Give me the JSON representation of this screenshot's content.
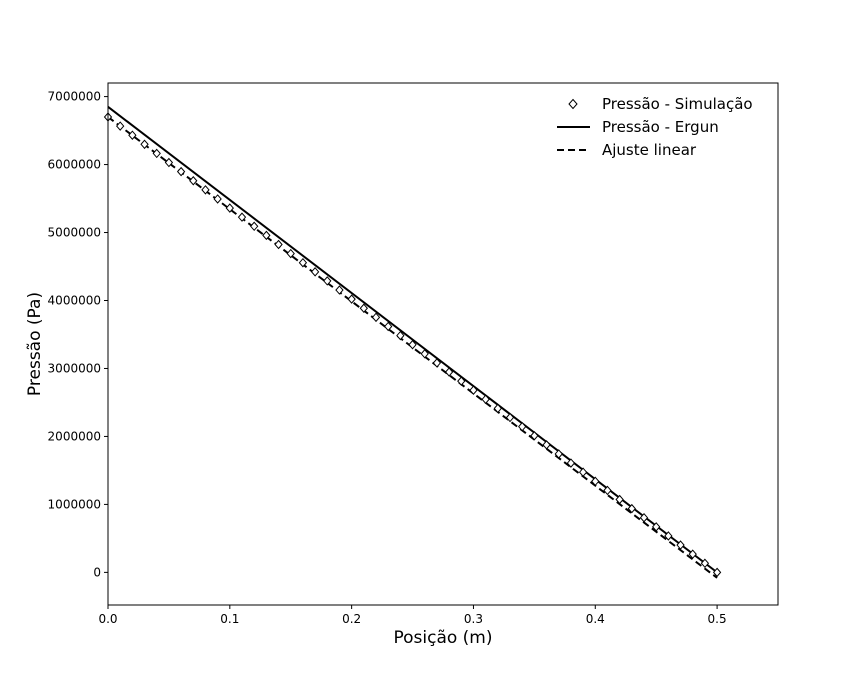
{
  "chart_data": {
    "type": "line",
    "title": "",
    "xlabel": "Posição (m)",
    "ylabel": "Pressão (Pa)",
    "xlim": [
      0.0,
      0.55
    ],
    "ylim": [
      -480000,
      7200000
    ],
    "xticks": [
      0.0,
      0.1,
      0.2,
      0.3,
      0.4,
      0.5
    ],
    "xtick_labels": [
      "0.0",
      "0.1",
      "0.2",
      "0.3",
      "0.4",
      "0.5"
    ],
    "yticks": [
      0,
      1000000,
      2000000,
      3000000,
      4000000,
      5000000,
      6000000,
      7000000
    ],
    "ytick_labels": [
      "0",
      "1000000",
      "2000000",
      "3000000",
      "4000000",
      "5000000",
      "6000000",
      "7000000"
    ],
    "grid": false,
    "legend_position": "top-right",
    "series": [
      {
        "name": "Pressão - Simulação",
        "style": "markers",
        "marker": "diamond",
        "color": "#000000",
        "x_start": 0.0,
        "x_end": 0.5,
        "x_step": 0.01,
        "y_start": 6700000,
        "y_end": 0
      },
      {
        "name": "Pressão - Ergun",
        "style": "solid",
        "color": "#000000",
        "x": [
          0.0,
          0.5
        ],
        "y": [
          6850000,
          0
        ]
      },
      {
        "name": "Ajuste linear",
        "style": "dashed",
        "color": "#000000",
        "x": [
          0.0,
          0.5
        ],
        "y": [
          6700000,
          -80000
        ]
      }
    ]
  }
}
